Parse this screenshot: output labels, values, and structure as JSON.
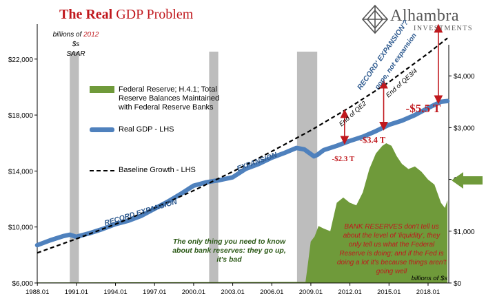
{
  "title": {
    "part1": "The Real",
    "part2": "GDP Problem"
  },
  "logo": {
    "name": "Alhambra",
    "sub": "INVESTMENTS"
  },
  "units_note": {
    "line1_prefix": "billions of",
    "line1_year": "2012",
    "line1_suffix": "$s",
    "line2": "SAAR"
  },
  "legend": {
    "fed": "Federal Reserve; H.4.1; Total Reserve Balances Maintained with Federal Reserve Banks",
    "gdp": "Real GDP - LHS",
    "baseline": "Baseline Growth - LHS"
  },
  "annotations": {
    "record_expansion": "RECORD EXPANSION",
    "expansion": "EXPANSION",
    "record_expansion_q": "RECORD' EXPANSION'?",
    "nope": "nope, not expansion",
    "end_qe2": "End of QE2",
    "end_qe34": "End of QE3/4",
    "gap1": "-$2.3 T",
    "gap2": "-$3.4 T",
    "gap3": "-$5.5 T",
    "green_note": "The only thing you need to know about bank reserves: they go up, it's bad",
    "red_note": "BANK RESERVES don't tell us about the level of 'liquidity', they only tell us what the Federal Reserve is doing; and if the Fed is doing a lot it's because things aren't going well",
    "rhs_unit": "billions of $s"
  },
  "colors": {
    "gdp": "#4f81bd",
    "reserves": "#6f9a3a",
    "recession": "#bdbdbd",
    "red": "#c0181d",
    "arrow": "#6f9a3a"
  },
  "chart_data": {
    "type": "line",
    "x_ticks": [
      "1988.01",
      "1991.01",
      "1994.01",
      "1997.01",
      "2000.01",
      "2003.01",
      "2006.01",
      "2009.01",
      "2012.01",
      "2015.01",
      "2018.01"
    ],
    "y_left_ticks": [
      "$6,000",
      "$10,000",
      "$14,000",
      "$18,000",
      "$22,000"
    ],
    "y_left_range": [
      6000,
      24500
    ],
    "y_right_ticks": [
      "$0",
      "$1,000",
      "$2,000",
      "$3,000",
      "$4,000"
    ],
    "y_right_range": [
      0,
      5000
    ],
    "x_range": [
      1988.0,
      2019.6
    ],
    "recessions": [
      [
        1990.5,
        1991.2
      ],
      [
        2001.2,
        2001.9
      ],
      [
        2007.95,
        2009.5
      ]
    ],
    "series": [
      {
        "name": "Real GDP - LHS",
        "axis": "left",
        "x": [
          1988,
          1989,
          1990,
          1990.5,
          1991,
          1992,
          1993,
          1994,
          1995,
          1996,
          1997,
          1998,
          1999,
          2000,
          2001,
          2002,
          2003,
          2004,
          2005,
          2006,
          2007,
          2007.9,
          2008.5,
          2009.25,
          2009.5,
          2010,
          2011,
          2012,
          2013,
          2014,
          2015,
          2016,
          2017,
          2018,
          2019,
          2019.5
        ],
        "y": [
          8700,
          9050,
          9350,
          9450,
          9300,
          9550,
          9850,
          10200,
          10450,
          10800,
          11300,
          11800,
          12350,
          12950,
          13200,
          13350,
          13550,
          14150,
          14500,
          14950,
          15300,
          15650,
          15550,
          15050,
          15150,
          15500,
          15800,
          16150,
          16450,
          16850,
          17300,
          17600,
          18000,
          18500,
          18950,
          19000
        ]
      },
      {
        "name": "Baseline Growth - LHS",
        "axis": "left",
        "x": [
          1988,
          1991,
          1994,
          1997,
          2000,
          2003,
          2006,
          2009,
          2012,
          2015,
          2018,
          2019.5
        ],
        "y": [
          8150,
          9150,
          10200,
          11350,
          12600,
          13950,
          15400,
          16900,
          18550,
          20350,
          22400,
          23500
        ]
      },
      {
        "name": "Federal Reserve; H.4.1; Total Reserve Balances Maintained with Federal Reserve Banks",
        "axis": "right",
        "x": [
          1988,
          2008.6,
          2008.8,
          2009.0,
          2009.3,
          2009.6,
          2010.0,
          2010.5,
          2011.0,
          2011.5,
          2012.0,
          2012.5,
          2013.0,
          2013.5,
          2014.0,
          2014.5,
          2014.8,
          2015.2,
          2015.6,
          2016.0,
          2016.5,
          2017.0,
          2017.5,
          2018.0,
          2018.5,
          2019.0,
          2019.3,
          2019.5
        ],
        "y": [
          10,
          20,
          400,
          800,
          900,
          1100,
          1050,
          1000,
          1550,
          1650,
          1550,
          1500,
          1750,
          2200,
          2500,
          2650,
          2700,
          2650,
          2450,
          2300,
          2200,
          2250,
          2150,
          2000,
          1900,
          1550,
          1450,
          1600
        ]
      }
    ],
    "gaps": [
      {
        "label": "-$2.3 T",
        "x": 2011.6,
        "from": 16000,
        "to": 18300
      },
      {
        "label": "-$3.4 T",
        "x": 2014.6,
        "from": 17000,
        "to": 20400
      },
      {
        "label": "-$5.5 T",
        "x": 2018.8,
        "from": 18900,
        "to": 24400
      }
    ]
  }
}
